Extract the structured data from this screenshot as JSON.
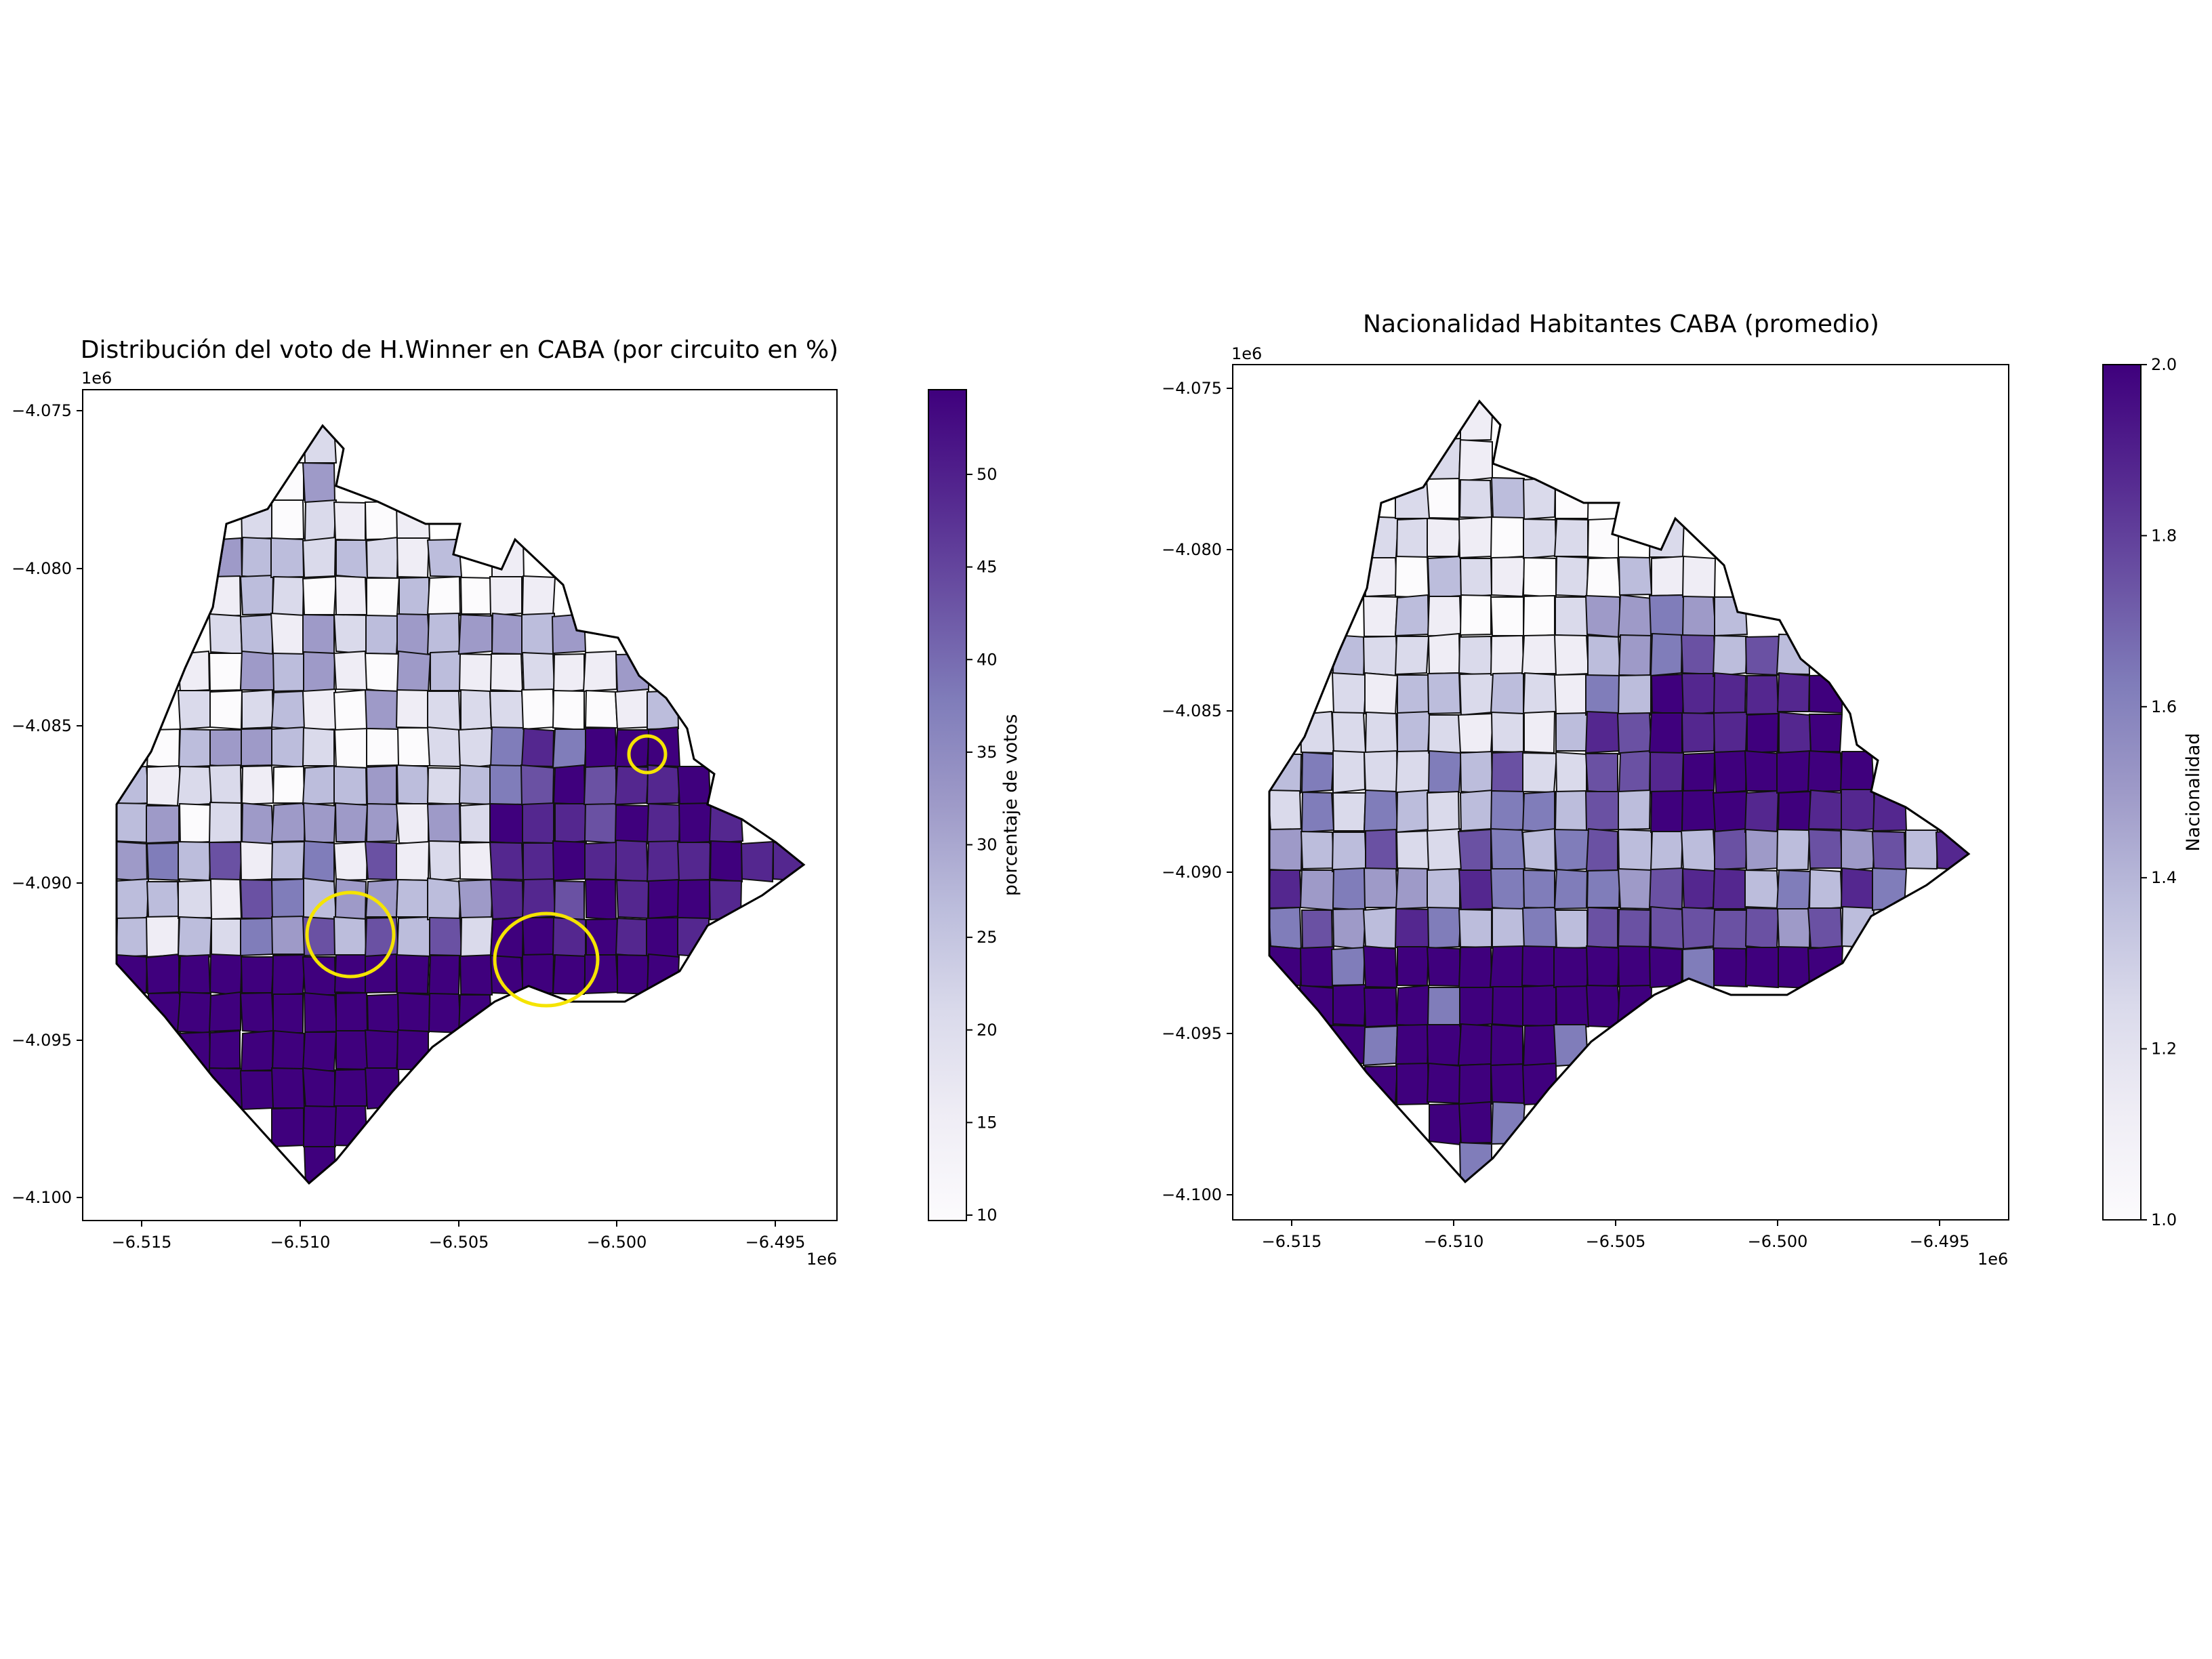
{
  "chart_data": [
    {
      "type": "choropleth-map",
      "title": "Distribución del voto de H.Winner en CABA (por circuito en %)",
      "x_ticks": [
        "−6.515",
        "−6.510",
        "−6.505",
        "−6.500",
        "−6.495"
      ],
      "y_ticks": [
        "−4.075",
        "−4.080",
        "−4.085",
        "−4.090",
        "−4.095",
        "−4.100"
      ],
      "x_offset": "1e6",
      "y_offset": "1e6",
      "xlim": [
        -6516700,
        -6493000
      ],
      "ylim": [
        -4100700,
        -4074600
      ],
      "colorbar": {
        "label": "porcentaje de votos",
        "ticks": [
          "10",
          "15",
          "20",
          "25",
          "30",
          "35",
          "40",
          "45",
          "50"
        ],
        "range": [
          9.5,
          55
        ],
        "colormap": "Purples"
      },
      "annotations": "yellow circles highlighting three zones"
    },
    {
      "type": "choropleth-map",
      "title": "Nacionalidad Habitantes CABA (promedio)",
      "x_ticks": [
        "−6.515",
        "−6.510",
        "−6.505",
        "−6.500",
        "−6.495"
      ],
      "y_ticks": [
        "−4.075",
        "−4.080",
        "−4.085",
        "−4.090",
        "−4.095",
        "−4.100"
      ],
      "x_offset": "1e6",
      "y_offset": "1e6",
      "xlim": [
        -6516700,
        -6492500
      ],
      "ylim": [
        -4100700,
        -4074600
      ],
      "colorbar": {
        "label": "Nacionalidad",
        "ticks": [
          "1.0",
          "1.2",
          "1.4",
          "1.6",
          "1.8",
          "2.0"
        ],
        "range": [
          1.0,
          2.0
        ],
        "colormap": "Purples"
      }
    }
  ],
  "colors": {
    "purples": [
      "#fcfbfd",
      "#efedf5",
      "#dadaeb",
      "#bcbddc",
      "#9e9ac8",
      "#807dba",
      "#6a51a3",
      "#54278f",
      "#3f007d"
    ],
    "highlight": "#f5e400"
  }
}
